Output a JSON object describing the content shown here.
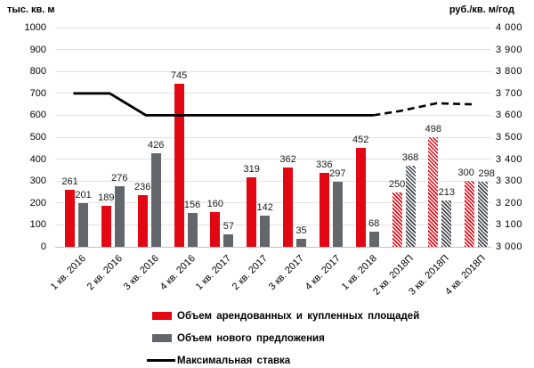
{
  "chart_data": {
    "type": "bar",
    "subtype": "grouped-bars-with-line-overlay",
    "categories": [
      "1 кв. 2016",
      "2 кв. 2016",
      "3 кв. 2016",
      "4 кв. 2016",
      "1 кв. 2017",
      "2 кв. 2017",
      "3 кв. 2017",
      "4 кв. 2017",
      "1 кв. 2018",
      "2 кв. 2018П",
      "3 кв. 2018П",
      "4 кв. 2018П"
    ],
    "series": [
      {
        "name": "Объем арендованных и купленных площадей",
        "kind": "bar",
        "axis": "left",
        "color": "#e30613",
        "values": [
          261,
          189,
          236,
          745,
          160,
          319,
          362,
          336,
          452,
          250,
          498,
          300
        ]
      },
      {
        "name": "Объем нового предложения",
        "kind": "bar",
        "axis": "left",
        "color": "#63666b",
        "values": [
          201,
          276,
          426,
          156,
          57,
          142,
          35,
          297,
          68,
          368,
          213,
          298
        ]
      },
      {
        "name": "Максимальная ставка",
        "kind": "line",
        "axis": "right",
        "color": "#000000",
        "values": [
          3700,
          3700,
          3600,
          3600,
          3600,
          3600,
          3600,
          3600,
          3600,
          3620,
          3655,
          3650
        ]
      }
    ],
    "forecast_from_index": 9,
    "forecast_style": "diagonal-hatch bars, dashed line",
    "left_axis": {
      "title": "тыс. кв. м",
      "min": 0,
      "max": 1000,
      "step": 100,
      "ticks": [
        "1000",
        "900",
        "800",
        "700",
        "600",
        "500",
        "400",
        "300",
        "200",
        "100",
        "0"
      ]
    },
    "right_axis": {
      "title": "руб./кв. м/год",
      "min": 3000,
      "max": 4000,
      "step": 100,
      "ticks": [
        "4 000",
        "3 900",
        "3 800",
        "3 700",
        "3 600",
        "3 500",
        "3 400",
        "3 300",
        "3 200",
        "3 100",
        "3 000"
      ]
    },
    "grid": true,
    "legend_position": "bottom-left",
    "background": "#ffffff",
    "hatch_stripe_colors": {
      "red": "#e30613",
      "gray": "#3f4348",
      "gap": "#ffffff"
    }
  }
}
